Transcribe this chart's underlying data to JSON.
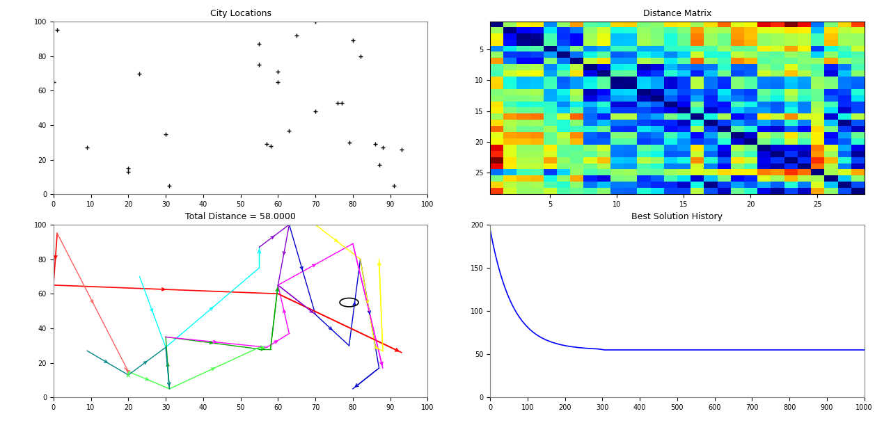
{
  "cities_x": [
    1,
    9,
    20,
    20,
    23,
    30,
    31,
    55,
    55,
    57,
    58,
    60,
    60,
    63,
    70,
    70,
    76,
    79,
    80,
    82,
    87,
    88,
    91,
    93,
    0,
    65,
    77,
    86
  ],
  "cities_y": [
    95,
    27,
    15,
    13,
    70,
    35,
    5,
    75,
    87,
    29,
    28,
    71,
    65,
    37,
    48,
    100,
    53,
    30,
    89,
    80,
    17,
    27,
    5,
    26,
    65,
    92,
    53,
    29
  ],
  "depot_x": 79,
  "depot_y": 55,
  "title_scatter": "City Locations",
  "title_distance": "Distance Matrix",
  "title_routes": "Total Distance = 58.0000",
  "title_history": "Best Solution History",
  "routes": [
    {
      "color": "red",
      "x": [
        1,
        20,
        19,
        60
      ],
      "y": [
        95,
        15,
        15,
        60
      ]
    },
    {
      "color": "red",
      "x": [
        0,
        60,
        93
      ],
      "y": [
        65,
        60,
        26
      ]
    },
    {
      "color": "cyan",
      "x": [
        23,
        30,
        55
      ],
      "y": [
        70,
        29,
        87
      ]
    },
    {
      "color": "#00CC00",
      "x": [
        31,
        30,
        58,
        55,
        60
      ],
      "y": [
        5,
        35,
        28,
        28,
        65
      ]
    },
    {
      "color": "#00BB00",
      "x": [
        20,
        20,
        30,
        55
      ],
      "y": [
        13,
        15,
        5,
        29
      ]
    },
    {
      "color": "magenta",
      "x": [
        30,
        57,
        63,
        60,
        88
      ],
      "y": [
        35,
        29,
        37,
        65,
        17
      ]
    },
    {
      "color": "blue",
      "x": [
        63,
        79,
        87,
        80,
        82
      ],
      "y": [
        100,
        30,
        17,
        5,
        80
      ]
    },
    {
      "color": "yellow",
      "x": [
        70,
        82,
        88,
        87
      ],
      "y": [
        100,
        80,
        27,
        80
      ]
    },
    {
      "color": "#8800FF",
      "x": [
        60,
        70,
        63
      ],
      "y": [
        71,
        53,
        100
      ]
    },
    {
      "color": "#00CED1",
      "x": [
        9,
        20,
        30
      ],
      "y": [
        27,
        15,
        29
      ]
    }
  ],
  "n_cities": 28,
  "xlim": [
    0,
    100
  ],
  "ylim": [
    0,
    100
  ],
  "hist_xlim": [
    0,
    1000
  ],
  "hist_ylim": [
    0,
    200
  ]
}
